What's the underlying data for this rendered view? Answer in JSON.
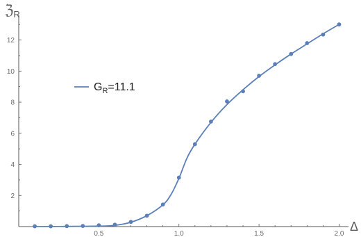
{
  "chart_data": {
    "type": "line",
    "title": "",
    "xlabel": "Δ",
    "ylabel": "ℨ",
    "ylabel_sub": "R",
    "xlim": [
      0,
      2.05
    ],
    "ylim": [
      0,
      13.5
    ],
    "x_ticks": [
      0.5,
      1.0,
      1.5,
      2.0
    ],
    "x_tick_labels": [
      "0.5",
      "1.0",
      "1.5",
      "2.0"
    ],
    "y_ticks": [
      2,
      4,
      6,
      8,
      10,
      12
    ],
    "y_tick_labels": [
      "2",
      "4",
      "6",
      "8",
      "10",
      "12"
    ],
    "grid": false,
    "legend_position": "upper-left",
    "colors": {
      "series": "#5b7fb8",
      "axis": "#555555"
    },
    "series": [
      {
        "name_main": "G",
        "name_sub": "R",
        "name_rest": "=11.1",
        "points": [
          {
            "x": 0.1,
            "y": 0.02
          },
          {
            "x": 0.2,
            "y": 0.02
          },
          {
            "x": 0.3,
            "y": 0.03
          },
          {
            "x": 0.4,
            "y": 0.04
          },
          {
            "x": 0.5,
            "y": 0.08
          },
          {
            "x": 0.6,
            "y": 0.12
          },
          {
            "x": 0.7,
            "y": 0.3
          },
          {
            "x": 0.8,
            "y": 0.7
          },
          {
            "x": 0.9,
            "y": 1.42
          },
          {
            "x": 1.0,
            "y": 3.15
          },
          {
            "x": 1.1,
            "y": 5.3
          },
          {
            "x": 1.2,
            "y": 6.75
          },
          {
            "x": 1.3,
            "y": 8.05
          },
          {
            "x": 1.4,
            "y": 8.7
          },
          {
            "x": 1.5,
            "y": 9.7
          },
          {
            "x": 1.6,
            "y": 10.45
          },
          {
            "x": 1.7,
            "y": 11.1
          },
          {
            "x": 1.8,
            "y": 11.8
          },
          {
            "x": 1.9,
            "y": 12.35
          },
          {
            "x": 2.0,
            "y": 13.0
          }
        ],
        "curve": [
          {
            "x": 0.1,
            "y": 0.0
          },
          {
            "x": 0.3,
            "y": 0.01
          },
          {
            "x": 0.5,
            "y": 0.03
          },
          {
            "x": 0.6,
            "y": 0.08
          },
          {
            "x": 0.7,
            "y": 0.28
          },
          {
            "x": 0.8,
            "y": 0.7
          },
          {
            "x": 0.9,
            "y": 1.4
          },
          {
            "x": 0.95,
            "y": 2.05
          },
          {
            "x": 1.0,
            "y": 3.1
          },
          {
            "x": 1.05,
            "y": 4.4
          },
          {
            "x": 1.1,
            "y": 5.3
          },
          {
            "x": 1.2,
            "y": 6.7
          },
          {
            "x": 1.3,
            "y": 7.85
          },
          {
            "x": 1.4,
            "y": 8.8
          },
          {
            "x": 1.5,
            "y": 9.65
          },
          {
            "x": 1.6,
            "y": 10.4
          },
          {
            "x": 1.7,
            "y": 11.1
          },
          {
            "x": 1.8,
            "y": 11.75
          },
          {
            "x": 1.9,
            "y": 12.4
          },
          {
            "x": 2.0,
            "y": 13.0
          }
        ]
      }
    ]
  }
}
